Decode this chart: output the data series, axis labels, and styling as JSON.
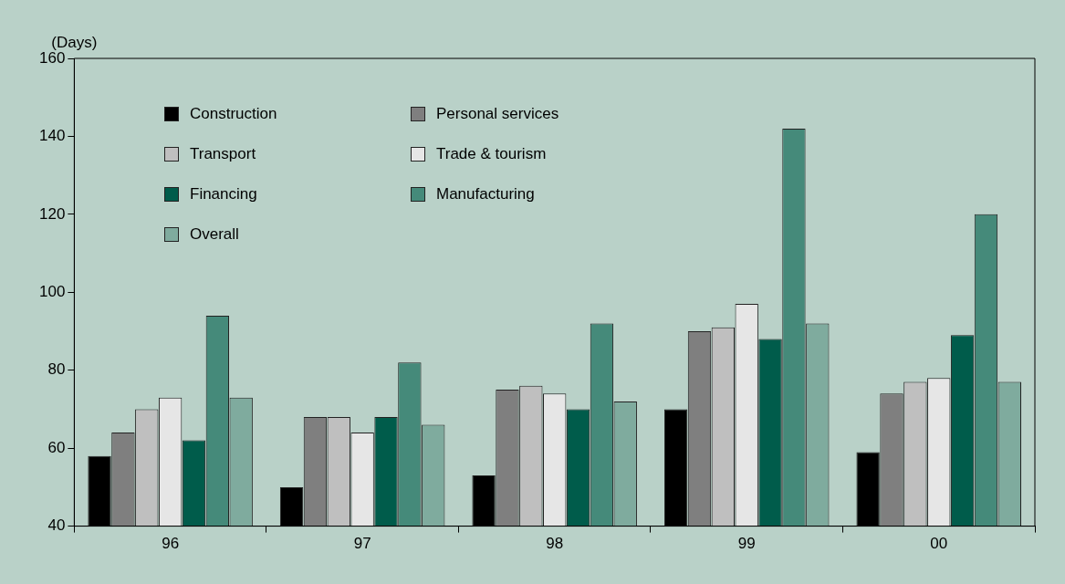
{
  "chart_data": {
    "type": "bar",
    "ylabel": "(Days)",
    "categories": [
      "96",
      "97",
      "98",
      "99",
      "00"
    ],
    "series": [
      {
        "name": "Construction",
        "color": "#000000",
        "values": [
          58,
          50,
          53,
          70,
          59
        ]
      },
      {
        "name": "Personal services",
        "color": "#7f7f7f",
        "values": [
          64,
          68,
          75,
          90,
          74
        ]
      },
      {
        "name": "Transport",
        "color": "#bfbfbf",
        "values": [
          70,
          68,
          76,
          91,
          77
        ]
      },
      {
        "name": "Trade & tourism",
        "color": "#e6e6e6",
        "values": [
          73,
          64,
          74,
          97,
          78
        ]
      },
      {
        "name": "Financing",
        "color": "#005c4b",
        "values": [
          62,
          68,
          70,
          88,
          89
        ]
      },
      {
        "name": "Manufacturing",
        "color": "#458a7a",
        "values": [
          94,
          82,
          92,
          142,
          120
        ]
      },
      {
        "name": "Overall",
        "color": "#7fab9e",
        "values": [
          73,
          66,
          72,
          92,
          77
        ]
      }
    ],
    "ylim": [
      40,
      160
    ],
    "yticks": [
      40,
      60,
      80,
      100,
      120,
      140,
      160
    ],
    "grid": false,
    "legend": "top left"
  }
}
